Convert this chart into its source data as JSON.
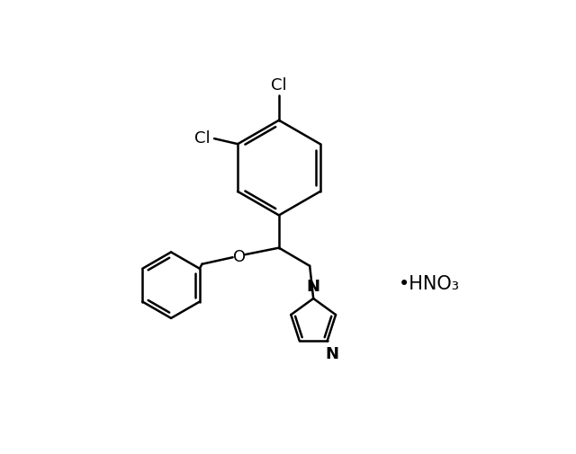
{
  "bg_color": "#ffffff",
  "line_color": "#000000",
  "line_width": 1.8,
  "font_size": 13,
  "figsize": [
    6.4,
    5.06
  ],
  "dpi": 100,
  "cl_top": "Cl",
  "cl_side": "Cl",
  "o_label": "O",
  "n1_label": "N",
  "n3_label": "N",
  "hno3_text": "•HNO₃"
}
